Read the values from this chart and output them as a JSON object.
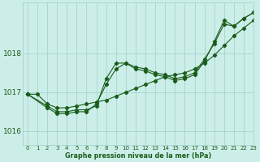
{
  "title": "Graphe pression niveau de la mer (hPa)",
  "bg_color": "#cceee8",
  "grid_color": "#9fcfca",
  "line_color": "#1a5c1a",
  "xlim": [
    -0.5,
    23
  ],
  "ylim": [
    1015.65,
    1019.3
  ],
  "yticks": [
    1016,
    1017,
    1018
  ],
  "xticks": [
    0,
    1,
    2,
    3,
    4,
    5,
    6,
    7,
    8,
    9,
    10,
    11,
    12,
    13,
    14,
    15,
    16,
    17,
    18,
    19,
    20,
    21,
    22,
    23
  ],
  "line1_x": [
    0,
    1,
    2,
    3,
    4,
    5,
    6,
    7,
    8,
    9,
    10,
    11,
    12,
    13,
    14,
    15,
    16,
    17,
    18,
    19,
    20,
    21,
    22,
    23
  ],
  "line1_y": [
    1016.95,
    1016.95,
    1016.7,
    1016.6,
    1016.6,
    1016.65,
    1016.7,
    1016.75,
    1016.8,
    1016.9,
    1017.0,
    1017.1,
    1017.2,
    1017.3,
    1017.4,
    1017.45,
    1017.5,
    1017.6,
    1017.75,
    1017.95,
    1018.2,
    1018.45,
    1018.65,
    1018.85
  ],
  "line2_x": [
    0,
    2,
    3,
    4,
    5,
    6,
    7,
    8,
    9,
    10,
    11,
    12,
    13,
    14,
    15,
    16,
    17,
    18,
    19,
    20,
    21,
    22,
    23
  ],
  "line2_y": [
    1016.95,
    1016.65,
    1016.5,
    1016.5,
    1016.55,
    1016.55,
    1016.65,
    1017.35,
    1017.75,
    1017.75,
    1017.65,
    1017.6,
    1017.5,
    1017.45,
    1017.35,
    1017.4,
    1017.5,
    1017.85,
    1018.25,
    1018.75,
    1018.7,
    1018.9,
    1019.05
  ],
  "line3_x": [
    0,
    2,
    3,
    4,
    5,
    6,
    7,
    8,
    9,
    10,
    11,
    12,
    13,
    14,
    15,
    16,
    17,
    18,
    19,
    20,
    21,
    22,
    23
  ],
  "line3_y": [
    1016.95,
    1016.6,
    1016.45,
    1016.45,
    1016.5,
    1016.5,
    1016.7,
    1017.2,
    1017.6,
    1017.75,
    1017.6,
    1017.55,
    1017.45,
    1017.4,
    1017.3,
    1017.35,
    1017.45,
    1017.8,
    1018.3,
    1018.85,
    1018.7,
    1018.9,
    1019.05
  ]
}
